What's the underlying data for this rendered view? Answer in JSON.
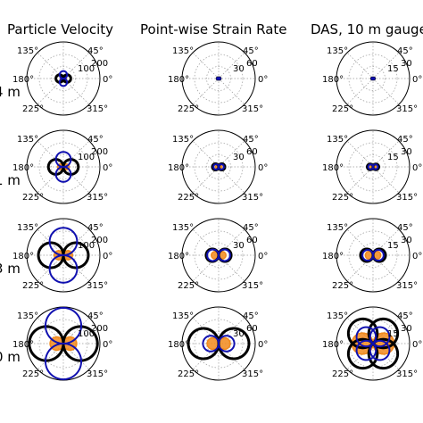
{
  "column_titles": [
    "Particle Velocity",
    "Point-wise Strain Rate",
    "DAS, 10 m gauge"
  ],
  "row_labels": [
    "4 m",
    "1 m",
    "3 m",
    "0 m"
  ],
  "colors": {
    "black": "#000000",
    "blue": "#1010b0",
    "orange": "#f28a1c",
    "grid": "#9a9a9a"
  },
  "chart_data": [
    {
      "type": "polar",
      "panel": "Particle Velocity / 4 m",
      "angle_ticks": [
        "45°",
        "135°",
        "180°",
        "225°",
        "315°",
        "0°"
      ],
      "radial_ticks": [
        "100",
        "200"
      ],
      "rmax": 220,
      "lobes": [
        {
          "color": "black",
          "amp": 45,
          "axis": 0,
          "width": 3
        },
        {
          "color": "blue",
          "amp": 45,
          "axis": 90,
          "width": 2
        },
        {
          "color": "orange",
          "amp": 18,
          "axis": 0,
          "width": 3
        }
      ]
    },
    {
      "type": "polar",
      "panel": "Point-wise Strain Rate / 4 m",
      "angle_ticks": [
        "45°",
        "135°",
        "180°",
        "225°",
        "315°",
        "0°"
      ],
      "radial_ticks": [
        "30",
        "60"
      ],
      "rmax": 70,
      "lobes": [
        {
          "color": "black",
          "amp": 3,
          "axis": 0,
          "width": 3
        },
        {
          "color": "blue",
          "amp": 3,
          "axis": 0,
          "width": 2
        },
        {
          "color": "orange",
          "amp": 2,
          "axis": 0,
          "width": 3
        }
      ]
    },
    {
      "type": "polar",
      "panel": "DAS, 10 m gauge / 4 m",
      "angle_ticks": [
        "45°",
        "135°",
        "180°",
        "225°",
        "315°",
        "0°"
      ],
      "radial_ticks": [
        "15",
        "30"
      ],
      "rmax": 38,
      "lobes": [
        {
          "color": "black",
          "amp": 1.5,
          "axis": 0,
          "width": 3
        },
        {
          "color": "blue",
          "amp": 1.5,
          "axis": 0,
          "width": 2
        },
        {
          "color": "orange",
          "amp": 2,
          "axis": 0,
          "width": 3
        }
      ]
    },
    {
      "type": "polar",
      "panel": "Particle Velocity / 1 m",
      "angle_ticks": [
        "45°",
        "135°",
        "180°",
        "225°",
        "315°",
        "0°"
      ],
      "radial_ticks": [
        "100",
        "200"
      ],
      "rmax": 220,
      "lobes": [
        {
          "color": "black",
          "amp": 90,
          "axis": 0,
          "width": 3
        },
        {
          "color": "blue",
          "amp": 90,
          "axis": 90,
          "width": 2
        },
        {
          "color": "orange",
          "amp": 35,
          "axis": 0,
          "width": 3
        }
      ]
    },
    {
      "type": "polar",
      "panel": "Point-wise Strain Rate / 1 m",
      "angle_ticks": [
        "45°",
        "135°",
        "180°",
        "225°",
        "315°",
        "0°"
      ],
      "radial_ticks": [
        "30",
        "60"
      ],
      "rmax": 70,
      "lobes": [
        {
          "color": "black",
          "amp": 12,
          "axis": 0,
          "width": 3
        },
        {
          "color": "blue",
          "amp": 10,
          "axis": 0,
          "width": 2
        },
        {
          "color": "orange",
          "amp": 6,
          "axis": 0,
          "width": 3
        }
      ]
    },
    {
      "type": "polar",
      "panel": "DAS, 10 m gauge / 1 m",
      "angle_ticks": [
        "45°",
        "135°",
        "180°",
        "225°",
        "315°",
        "0°"
      ],
      "radial_ticks": [
        "15",
        "30"
      ],
      "rmax": 38,
      "lobes": [
        {
          "color": "black",
          "amp": 6,
          "axis": 0,
          "width": 3
        },
        {
          "color": "blue",
          "amp": 5,
          "axis": 0,
          "width": 2
        },
        {
          "color": "orange",
          "amp": 3,
          "axis": 0,
          "width": 3
        }
      ]
    },
    {
      "type": "polar",
      "panel": "Particle Velocity / 3 m",
      "angle_ticks": [
        "45°",
        "135°",
        "180°",
        "225°",
        "315°",
        "0°"
      ],
      "radial_ticks": [
        "100",
        "200"
      ],
      "rmax": 220,
      "lobes": [
        {
          "color": "black",
          "amp": 150,
          "axis": 0,
          "width": 3
        },
        {
          "color": "blue",
          "amp": 165,
          "axis": 90,
          "width": 2
        },
        {
          "color": "orange",
          "amp": 55,
          "axis": 0,
          "width": 3
        }
      ]
    },
    {
      "type": "polar",
      "panel": "Point-wise Strain Rate / 3 m",
      "angle_ticks": [
        "45°",
        "135°",
        "180°",
        "225°",
        "315°",
        "0°"
      ],
      "radial_ticks": [
        "30",
        "60"
      ],
      "rmax": 70,
      "lobes": [
        {
          "color": "black",
          "amp": 24,
          "axis": 0,
          "width": 3
        },
        {
          "color": "blue",
          "amp": 22,
          "axis": 0,
          "width": 2
        },
        {
          "color": "orange",
          "amp": 14,
          "axis": 0,
          "width": 3
        }
      ]
    },
    {
      "type": "polar",
      "panel": "DAS, 10 m gauge / 3 m",
      "angle_ticks": [
        "45°",
        "135°",
        "180°",
        "225°",
        "315°",
        "0°"
      ],
      "radial_ticks": [
        "15",
        "30"
      ],
      "rmax": 38,
      "lobes": [
        {
          "color": "black",
          "amp": 13,
          "axis": 0,
          "width": 3
        },
        {
          "color": "blue",
          "amp": 11,
          "axis": 0,
          "width": 2
        },
        {
          "color": "orange",
          "amp": 8,
          "axis": 0,
          "width": 3
        }
      ]
    },
    {
      "type": "polar",
      "panel": "Particle Velocity / 0 m",
      "angle_ticks": [
        "45°",
        "135°",
        "180°",
        "225°",
        "315°",
        "0°"
      ],
      "radial_ticks": [
        "100",
        "200"
      ],
      "rmax": 220,
      "lobes": [
        {
          "color": "black",
          "amp": 205,
          "axis": 0,
          "width": 3
        },
        {
          "color": "blue",
          "amp": 215,
          "axis": 90,
          "width": 2
        },
        {
          "color": "orange",
          "amp": 80,
          "axis": 0,
          "width": 3
        }
      ]
    },
    {
      "type": "polar",
      "panel": "Point-wise Strain Rate / 0 m",
      "angle_ticks": [
        "45°",
        "135°",
        "180°",
        "225°",
        "315°",
        "0°"
      ],
      "radial_ticks": [
        "30",
        "60"
      ],
      "rmax": 70,
      "lobes": [
        {
          "color": "black",
          "amp": 58,
          "axis": 0,
          "width": 3
        },
        {
          "color": "blue",
          "amp": 30,
          "axis": 0,
          "width": 2
        },
        {
          "color": "orange",
          "amp": 22,
          "axis": 0,
          "width": 3
        }
      ]
    },
    {
      "type": "polar",
      "panel": "DAS, 10 m gauge / 0 m",
      "angle_ticks": [
        "45°",
        "135°",
        "180°",
        "225°",
        "315°",
        "0°"
      ],
      "radial_ticks": [
        "15",
        "30"
      ],
      "rmax": 38,
      "lobes": [
        {
          "color": "black",
          "amp": 30,
          "axis": 45,
          "width": 3
        },
        {
          "color": "black",
          "amp": 30,
          "axis": 135,
          "width": 3
        },
        {
          "color": "blue",
          "amp": 20,
          "axis": 45,
          "width": 2
        },
        {
          "color": "blue",
          "amp": 20,
          "axis": 135,
          "width": 2
        },
        {
          "color": "orange",
          "amp": 22,
          "axis": 0,
          "width": 3
        }
      ]
    }
  ]
}
